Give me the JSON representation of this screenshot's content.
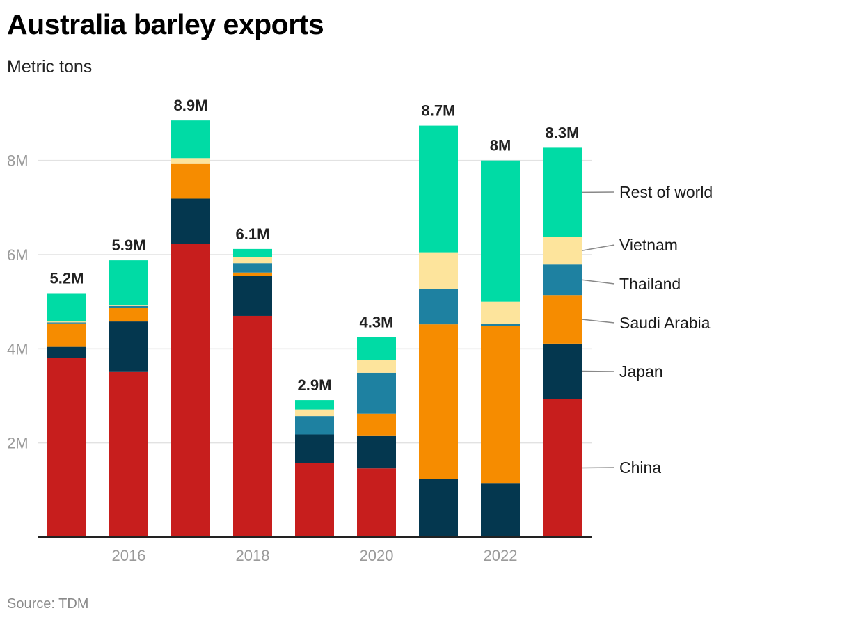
{
  "header": {
    "title": "Australia barley exports",
    "subtitle": "Metric tons"
  },
  "footer": {
    "source": "Source: TDM"
  },
  "chart_data": {
    "type": "bar",
    "stacked": true,
    "title": "Australia barley exports",
    "subtitle": "Metric tons",
    "xlabel": "",
    "ylabel": "",
    "ylim": [
      0,
      9000000
    ],
    "grid": true,
    "legend_position": "right",
    "x": [
      2015,
      2016,
      2017,
      2018,
      2019,
      2020,
      2021,
      2022,
      2023
    ],
    "x_tick_labels": [
      {
        "x": 2016,
        "label": "2016"
      },
      {
        "x": 2018,
        "label": "2018"
      },
      {
        "x": 2020,
        "label": "2020"
      },
      {
        "x": 2022,
        "label": "2022"
      }
    ],
    "y_ticks": [
      {
        "value": 2000000,
        "label": "2M"
      },
      {
        "value": 4000000,
        "label": "4M"
      },
      {
        "value": 6000000,
        "label": "6M"
      },
      {
        "value": 8000000,
        "label": "8M"
      }
    ],
    "totals": [
      "5.2M",
      "5.9M",
      "8.9M",
      "6.1M",
      "2.9M",
      "4.3M",
      "8.7M",
      "8M",
      "8.3M"
    ],
    "series": [
      {
        "name": "China",
        "color": "#c71e1d",
        "values": [
          3800000,
          3520000,
          6230000,
          4700000,
          1580000,
          1460000,
          0,
          0,
          2940000
        ]
      },
      {
        "name": "Japan",
        "color": "#04374f",
        "values": [
          240000,
          1060000,
          960000,
          850000,
          600000,
          700000,
          1240000,
          1150000,
          1170000
        ]
      },
      {
        "name": "Saudi Arabia",
        "color": "#f68c00",
        "values": [
          500000,
          290000,
          750000,
          70000,
          0,
          460000,
          3280000,
          3330000,
          1030000
        ]
      },
      {
        "name": "Thailand",
        "color": "#1e81a1",
        "values": [
          20000,
          40000,
          0,
          200000,
          390000,
          870000,
          750000,
          50000,
          650000
        ]
      },
      {
        "name": "Vietnam",
        "color": "#fde49c",
        "values": [
          20000,
          20000,
          110000,
          130000,
          140000,
          270000,
          780000,
          470000,
          590000
        ]
      },
      {
        "name": "Rest of world",
        "color": "#00dba5",
        "values": [
          600000,
          950000,
          800000,
          170000,
          200000,
          490000,
          2690000,
          3000000,
          1890000
        ]
      }
    ]
  }
}
